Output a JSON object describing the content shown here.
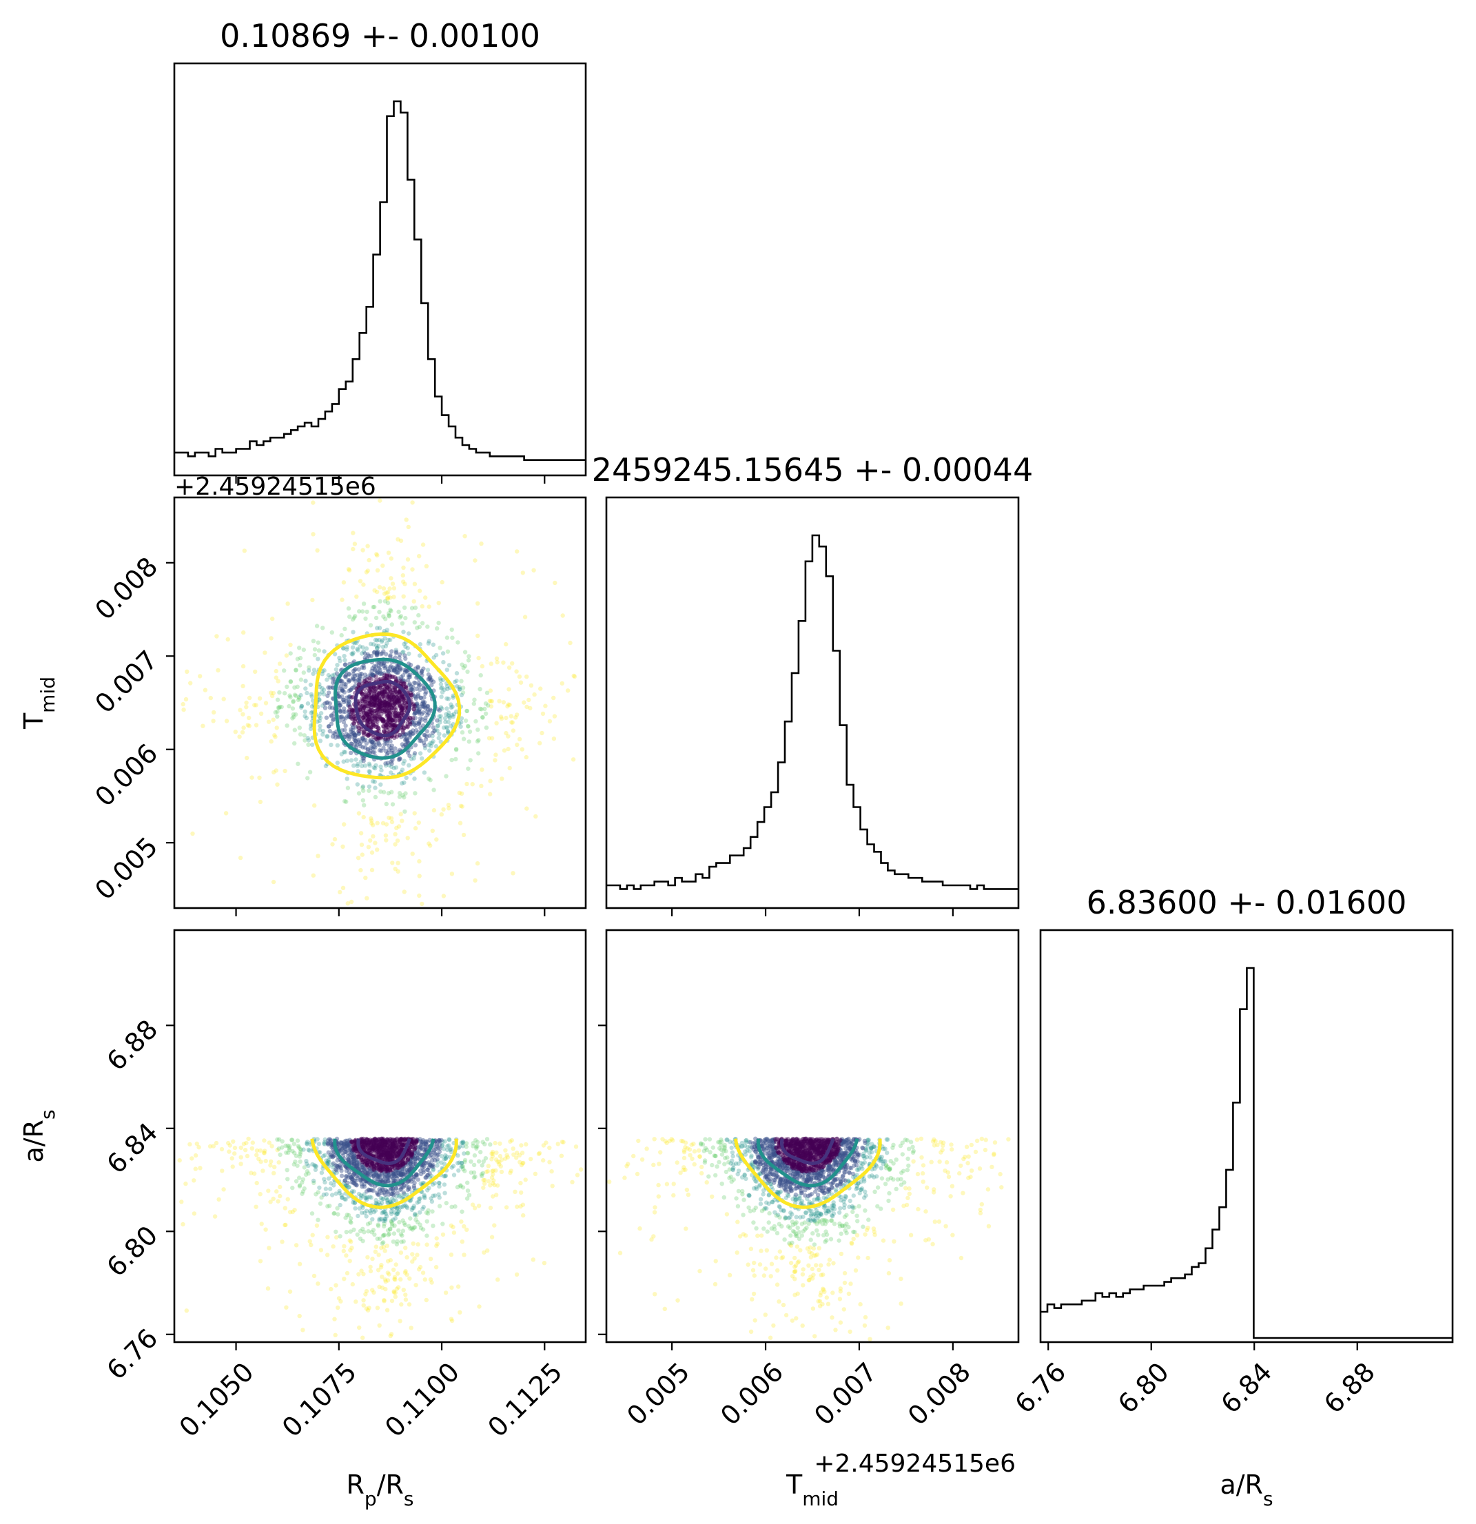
{
  "chart_data": {
    "type": "corner",
    "parameters": [
      {
        "key": "rp",
        "label": "R_p/R_s",
        "label_main": "R",
        "label_sub": "p",
        "label_suffix_main": "/R",
        "label_suffix_sub": "s",
        "title": "0.10869 +- 0.00100",
        "range": [
          0.1035,
          0.1135
        ],
        "ticks": [
          0.105,
          0.1075,
          0.11,
          0.1125
        ],
        "tick_labels": [
          "0.1050",
          "0.1075",
          "0.1100",
          "0.1125"
        ],
        "offset_text": ""
      },
      {
        "key": "tmid",
        "label": "T_mid",
        "label_main": "T",
        "label_sub": "mid",
        "label_suffix_main": "",
        "label_suffix_sub": "",
        "title": "2459245.15645 +- 0.00044",
        "range": [
          0.0043,
          0.0087
        ],
        "ticks": [
          0.005,
          0.006,
          0.007,
          0.008
        ],
        "tick_labels": [
          "0.005",
          "0.006",
          "0.007",
          "0.008"
        ],
        "offset_text": "+2.45924515e6"
      },
      {
        "key": "ars",
        "label": "a/R_s",
        "label_main": "a/R",
        "label_sub": "s",
        "label_suffix_main": "",
        "label_suffix_sub": "",
        "title": "6.83600 +- 0.01600",
        "range": [
          6.757,
          6.917
        ],
        "ticks": [
          6.76,
          6.8,
          6.84,
          6.88
        ],
        "tick_labels": [
          "6.76",
          "6.80",
          "6.84",
          "6.88"
        ],
        "offset_text": ""
      }
    ],
    "histograms": [
      {
        "param": "rp",
        "x_start": 0.1035,
        "bin_width": 0.0001667,
        "counts": [
          5,
          5,
          4,
          5,
          5,
          4,
          6,
          5,
          5,
          6,
          6,
          8,
          7,
          8,
          9,
          9,
          10,
          11,
          12,
          13,
          12,
          14,
          16,
          18,
          22,
          24,
          30,
          37,
          44,
          58,
          72,
          95,
          99,
          96,
          78,
          62,
          45,
          30,
          20,
          15,
          12,
          9,
          7,
          6,
          5,
          5,
          4,
          4,
          4,
          4,
          4,
          3,
          3,
          3,
          3,
          3,
          3,
          3,
          3,
          3
        ]
      },
      {
        "param": "tmid",
        "x_start": 0.0043,
        "bin_width": 7.33e-05,
        "counts": [
          5,
          5,
          4,
          5,
          4,
          5,
          5,
          6,
          6,
          5,
          7,
          6,
          6,
          8,
          7,
          10,
          11,
          11,
          13,
          13,
          15,
          18,
          22,
          26,
          30,
          38,
          49,
          62,
          76,
          92,
          99,
          96,
          88,
          68,
          48,
          32,
          26,
          20,
          16,
          14,
          11,
          9,
          8,
          8,
          7,
          7,
          6,
          6,
          6,
          5,
          5,
          5,
          5,
          4,
          5,
          4,
          4,
          4,
          4,
          4
        ]
      },
      {
        "param": "ars",
        "x_start": 6.757,
        "bin_width": 0.00267,
        "counts": [
          7,
          9,
          8,
          9,
          9,
          9,
          10,
          10,
          12,
          11,
          12,
          11,
          12,
          13,
          13,
          14,
          14,
          14,
          15,
          16,
          16,
          17,
          19,
          20,
          24,
          29,
          35,
          45,
          63,
          88,
          99,
          0,
          0,
          0,
          0,
          0,
          0,
          0,
          0,
          0,
          0,
          0,
          0,
          0,
          0,
          0,
          0,
          0,
          0,
          0,
          0,
          0,
          0,
          0,
          0,
          0,
          0,
          0,
          0,
          0
        ]
      }
    ],
    "scatter_panels": [
      {
        "x": "rp",
        "y": "tmid",
        "center": [
          0.10855,
          0.00645
        ],
        "spread": [
          0.001,
          0.00044
        ]
      },
      {
        "x": "rp",
        "y": "ars",
        "center": [
          0.1086,
          6.836
        ],
        "spread": [
          0.001,
          0.016
        ],
        "upper_bound": 6.836
      },
      {
        "x": "tmid",
        "y": "ars",
        "center": [
          0.00645,
          6.836
        ],
        "spread": [
          0.00044,
          0.016
        ],
        "upper_bound": 6.836
      }
    ],
    "contour_levels": [
      {
        "name": "inner",
        "color": "#46327e"
      },
      {
        "name": "middle",
        "color": "#21918c"
      },
      {
        "name": "outer",
        "color": "#fde725"
      }
    ],
    "scatter_colors": [
      "#440154",
      "#3b528b",
      "#21918c",
      "#5ec962",
      "#fde725"
    ]
  }
}
